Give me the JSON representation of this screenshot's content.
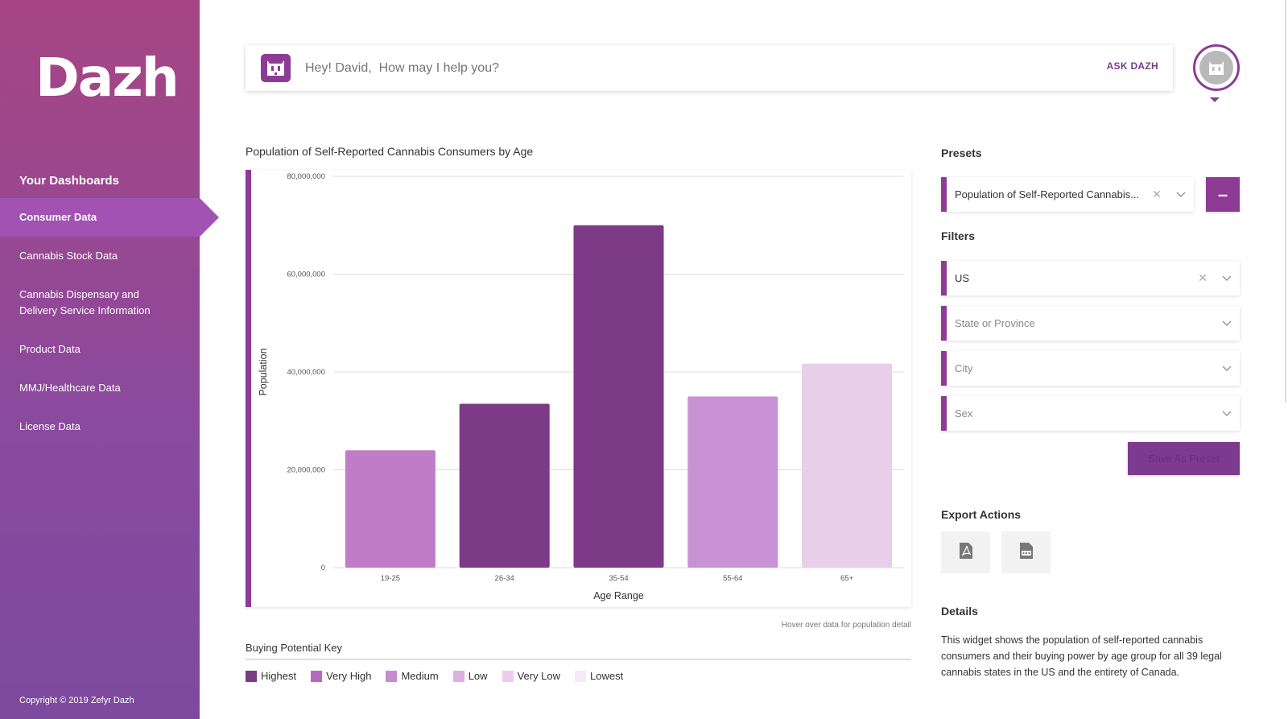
{
  "sidebar": {
    "logo": "Dazh",
    "heading": "Your Dashboards",
    "items": [
      {
        "label": "Consumer Data"
      },
      {
        "label": "Cannabis Stock Data"
      },
      {
        "label": "Cannabis Dispensary and Delivery Service Information"
      },
      {
        "label": "Product Data"
      },
      {
        "label": "MMJ/Healthcare Data"
      },
      {
        "label": "License Data"
      }
    ],
    "copyright": "Copyright © 2019 Zefyr Dazh"
  },
  "search": {
    "placeholder": "Hey! David,  How may I help you?",
    "button_label": "ASK DAZH"
  },
  "chart_data": {
    "type": "bar",
    "title": "Population of Self-Reported Cannabis Consumers by Age",
    "xlabel": "Age Range",
    "ylabel": "Population",
    "ylim": [
      0,
      80000000
    ],
    "yticks": [
      "80,000,000",
      "60,000,000",
      "40,000,000",
      "20,000,000",
      "0"
    ],
    "categories": [
      "19-25",
      "26-34",
      "35-54",
      "55-64",
      "65+"
    ],
    "values": [
      24000000,
      33500000,
      70000000,
      35000000,
      41700000
    ],
    "colors": [
      "#c07cc9",
      "#7d3a86",
      "#7d3a86",
      "#c992d4",
      "#e8cfe9"
    ]
  },
  "hover_note": "Hover over data for population detail",
  "key": {
    "title": "Buying Potential Key",
    "items": [
      {
        "label": "Highest",
        "color": "#7d3a86"
      },
      {
        "label": "Very High",
        "color": "#b769c2"
      },
      {
        "label": "Medium",
        "color": "#c88ad1"
      },
      {
        "label": "Low",
        "color": "#dcb0e0"
      },
      {
        "label": "Very Low",
        "color": "#ecccec"
      },
      {
        "label": "Lowest",
        "color": "#f6e9f5"
      }
    ]
  },
  "panel": {
    "presets_heading": "Presets",
    "preset_value": "Population of Self-Reported Cannabis...",
    "filters_heading": "Filters",
    "filter_country": "US",
    "filter_state_placeholder": "State or Province",
    "filter_city_placeholder": "City",
    "filter_sex_placeholder": "Sex",
    "save_label": "Save As Preset",
    "export_heading": "Export Actions",
    "details_heading": "Details",
    "details_text": "This widget shows the population of self-reported cannabis consumers and their buying power by age group for all 39 legal cannabis states in the US and the entirety of Canada."
  },
  "colors": {
    "accent": "#8e3b96"
  },
  "icons": [
    "dazh-bot-icon",
    "avatar-icon",
    "pdf-icon",
    "csv-icon",
    "close-icon",
    "chevron-down-icon"
  ]
}
